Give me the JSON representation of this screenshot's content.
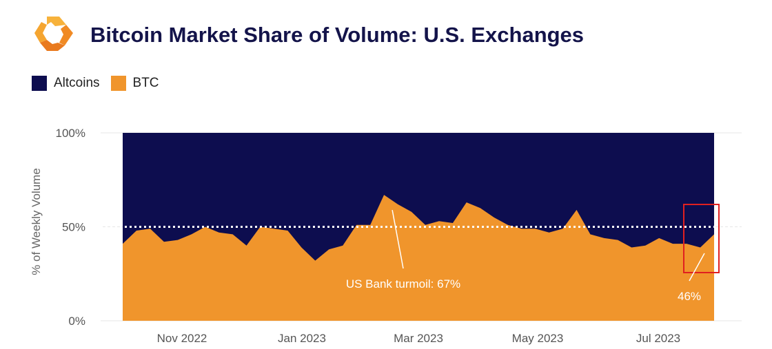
{
  "title": "Bitcoin Market Share of Volume: U.S. Exchanges",
  "colors": {
    "altcoins": "#0d0d4f",
    "btc": "#f0952c",
    "title": "#14144a",
    "highlight": "#e02020"
  },
  "legend": [
    {
      "label": "Altcoins",
      "color": "#0d0d4f"
    },
    {
      "label": "BTC",
      "color": "#f0952c"
    }
  ],
  "chart_data": {
    "type": "area",
    "stacked": true,
    "ylabel": "% of Weekly Volume",
    "yticks": [
      "0%",
      "50%",
      "100%"
    ],
    "ylim": [
      0,
      100
    ],
    "xticks": [
      "Nov 2022",
      "Jan 2023",
      "Mar 2023",
      "May 2023",
      "Jul 2023"
    ],
    "reference_line": 50,
    "series": [
      {
        "name": "BTC",
        "values": [
          41,
          48,
          49,
          42,
          43,
          46,
          50,
          47,
          46,
          40,
          50,
          49,
          48,
          39,
          32,
          38,
          40,
          51,
          51,
          67,
          62,
          58,
          51,
          53,
          52,
          63,
          60,
          55,
          51,
          49,
          49,
          47,
          49,
          59,
          46,
          44,
          43,
          39,
          40,
          44,
          41,
          41,
          39,
          46
        ]
      },
      {
        "name": "Altcoins",
        "values": [
          59,
          52,
          51,
          58,
          57,
          54,
          50,
          53,
          54,
          60,
          50,
          51,
          52,
          61,
          68,
          62,
          60,
          49,
          49,
          33,
          38,
          42,
          49,
          47,
          48,
          37,
          40,
          45,
          49,
          51,
          51,
          53,
          51,
          41,
          54,
          56,
          57,
          61,
          60,
          56,
          59,
          59,
          61,
          54
        ]
      }
    ],
    "annotations": [
      {
        "text": "US Bank turmoil: 67%"
      },
      {
        "text": "46%"
      }
    ]
  }
}
